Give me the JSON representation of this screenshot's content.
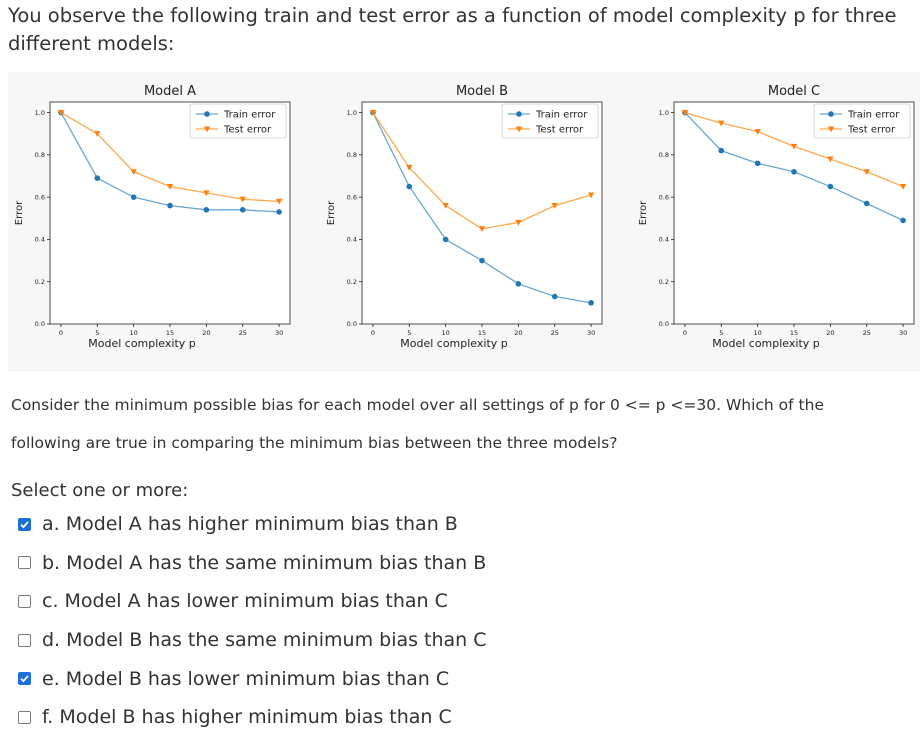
{
  "question": {
    "title": "You observe the following train and test error as a function of model complexity p for three different models:",
    "consider": "Consider the minimum possible bias for each model over all settings of p for 0 <= p <=30. Which of the following are true in comparing the minimum bias between the three models?",
    "select_label": "Select one or more:"
  },
  "options": [
    {
      "label": "a. Model A has higher minimum bias than B",
      "checked": true
    },
    {
      "label": "b. Model A has the same minimum bias than B",
      "checked": false
    },
    {
      "label": "c. Model A has lower minimum bias than C",
      "checked": false
    },
    {
      "label": "d. Model B has the same minimum bias than C",
      "checked": false
    },
    {
      "label": "e. Model B has lower minimum bias than C",
      "checked": true
    },
    {
      "label": "f. Model B has higher minimum bias than C",
      "checked": false
    }
  ],
  "colors": {
    "train": "#1f77b4",
    "test": "#ff7f0e",
    "train_line": "#6aa6d4",
    "test_line": "#ffa94d",
    "checkbox": "#1c6fd6"
  },
  "chart_data": [
    {
      "type": "line",
      "title": "Model A",
      "xlabel": "Model complexity p",
      "ylabel": "Error",
      "xticks": [
        "0",
        "5",
        "10",
        "15",
        "20",
        "25",
        "30"
      ],
      "yticks": [
        "0.0",
        "0.2",
        "0.4",
        "0.6",
        "0.8",
        "1.0"
      ],
      "xlim": [
        -1.5,
        31.5
      ],
      "ylim": [
        0,
        1.05
      ],
      "legend": "upper-right",
      "series": [
        {
          "name": "Train error",
          "x": [
            0,
            5,
            10,
            15,
            20,
            25,
            30
          ],
          "values": [
            1.0,
            0.69,
            0.6,
            0.56,
            0.54,
            0.54,
            0.53
          ]
        },
        {
          "name": "Test error",
          "x": [
            0,
            5,
            10,
            15,
            20,
            25,
            30
          ],
          "values": [
            1.0,
            0.9,
            0.72,
            0.65,
            0.62,
            0.59,
            0.58
          ]
        }
      ]
    },
    {
      "type": "line",
      "title": "Model B",
      "xlabel": "Model complexity p",
      "ylabel": "Error",
      "xticks": [
        "0",
        "5",
        "10",
        "15",
        "20",
        "25",
        "30"
      ],
      "yticks": [
        "0.0",
        "0.2",
        "0.4",
        "0.6",
        "0.8",
        "1.0"
      ],
      "xlim": [
        -1.5,
        31.5
      ],
      "ylim": [
        0,
        1.05
      ],
      "legend": "upper-right",
      "series": [
        {
          "name": "Train error",
          "x": [
            0,
            5,
            10,
            15,
            20,
            25,
            30
          ],
          "values": [
            1.0,
            0.65,
            0.4,
            0.3,
            0.19,
            0.13,
            0.1
          ]
        },
        {
          "name": "Test error",
          "x": [
            0,
            5,
            10,
            15,
            20,
            25,
            30
          ],
          "values": [
            1.0,
            0.74,
            0.56,
            0.45,
            0.48,
            0.56,
            0.61
          ]
        }
      ]
    },
    {
      "type": "line",
      "title": "Model C",
      "xlabel": "Model complexity p",
      "ylabel": "Error",
      "xticks": [
        "0",
        "5",
        "10",
        "15",
        "20",
        "25",
        "30"
      ],
      "yticks": [
        "0.0",
        "0.2",
        "0.4",
        "0.6",
        "0.8",
        "1.0"
      ],
      "xlim": [
        -1.5,
        31.5
      ],
      "ylim": [
        0,
        1.05
      ],
      "legend": "upper-right",
      "series": [
        {
          "name": "Train error",
          "x": [
            0,
            5,
            10,
            15,
            20,
            25,
            30
          ],
          "values": [
            1.0,
            0.82,
            0.76,
            0.72,
            0.65,
            0.57,
            0.49
          ]
        },
        {
          "name": "Test error",
          "x": [
            0,
            5,
            10,
            15,
            20,
            25,
            30
          ],
          "values": [
            1.0,
            0.95,
            0.91,
            0.84,
            0.78,
            0.72,
            0.65
          ]
        }
      ]
    }
  ]
}
